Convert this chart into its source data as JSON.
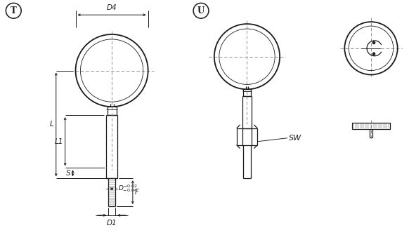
{
  "bg_color": "#ffffff",
  "line_color": "#1a1a1a",
  "dim_color": "#1a1a1a",
  "figsize": [
    5.82,
    3.35
  ],
  "dpi": 100,
  "label_T": "T",
  "label_U": "U",
  "label_D4": "D4",
  "label_L": "L",
  "label_L1": "L1",
  "label_S": "S",
  "label_F": "F",
  "label_D1": "D1",
  "label_SW": "SW"
}
